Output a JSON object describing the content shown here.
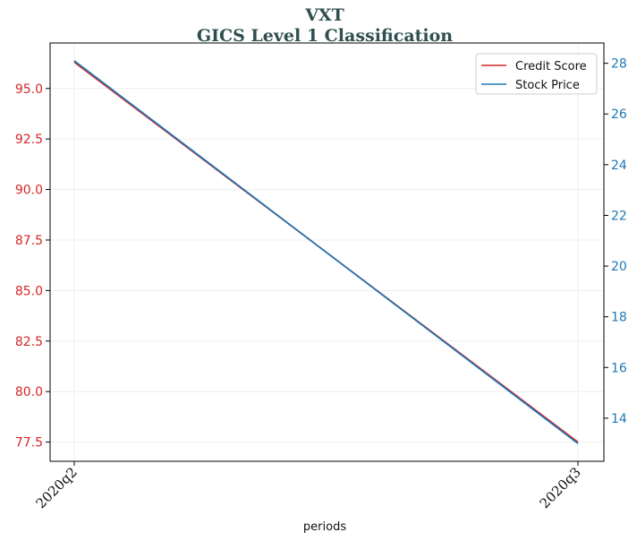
{
  "chart_data": {
    "type": "line",
    "title": "VXT",
    "subtitle": "GICS Level 1 Classification",
    "xlabel": "periods",
    "categories": [
      "2020q2",
      "2020q3"
    ],
    "y_left": {
      "ylim": [
        76.55,
        97.25
      ],
      "ticks": [
        77.5,
        80.0,
        82.5,
        85.0,
        87.5,
        90.0,
        92.5,
        95.0
      ],
      "tick_labels": [
        "77.5",
        "80.0",
        "82.5",
        "85.0",
        "87.5",
        "90.0",
        "92.5",
        "95.0"
      ],
      "color": "#d62728"
    },
    "y_right": {
      "ylim": [
        12.3,
        28.8
      ],
      "ticks": [
        14,
        16,
        18,
        20,
        22,
        24,
        26,
        28
      ],
      "tick_labels": [
        "14",
        "16",
        "18",
        "20",
        "22",
        "24",
        "26",
        "28"
      ],
      "color": "#1f77b4"
    },
    "series": [
      {
        "name": "Credit Score",
        "axis": "left",
        "color": "#d62728",
        "values": [
          96.3,
          77.5
        ]
      },
      {
        "name": "Stock Price",
        "axis": "right",
        "color": "#1f77b4",
        "values": [
          28.1,
          13.0
        ]
      }
    ],
    "grid": true,
    "legend_position": "upper right"
  }
}
